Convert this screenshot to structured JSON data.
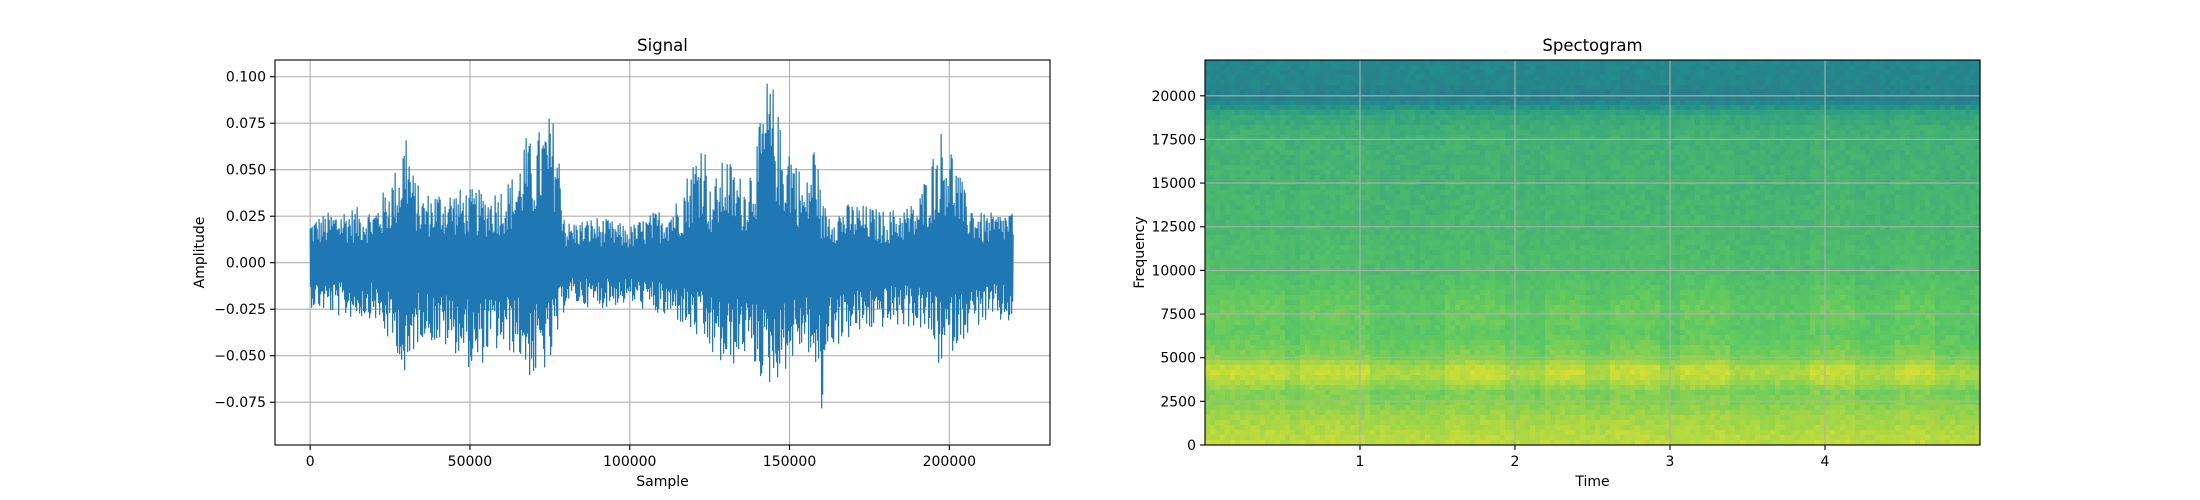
{
  "chart_data": [
    {
      "type": "line",
      "title": "Signal",
      "xlabel": "Sample",
      "ylabel": "Amplitude",
      "xlim": [
        -11000,
        231500
      ],
      "ylim": [
        -0.098,
        0.109
      ],
      "xticks": [
        0,
        50000,
        100000,
        150000,
        200000
      ],
      "xtick_labels": [
        "0",
        "50000",
        "100000",
        "150000",
        "200000"
      ],
      "yticks": [
        -0.075,
        -0.05,
        -0.025,
        0.0,
        0.025,
        0.05,
        0.075,
        0.1
      ],
      "ytick_labels": [
        "−0.075",
        "−0.050",
        "−0.025",
        "0.000",
        "0.025",
        "0.050",
        "0.075",
        "0.100"
      ],
      "grid": true,
      "line_color": "#1f77b4",
      "envelope": {
        "x": [
          0,
          10000,
          20000,
          25000,
          28000,
          30000,
          32000,
          35000,
          40000,
          47000,
          52000,
          55000,
          60000,
          65000,
          67000,
          70000,
          72000,
          75000,
          77000,
          80000,
          90000,
          100000,
          110000,
          115000,
          120000,
          123000,
          125000,
          128000,
          130000,
          133000,
          136000,
          140000,
          143000,
          145000,
          148000,
          150000,
          155000,
          158000,
          160000,
          162000,
          165000,
          170000,
          180000,
          190000,
          193000,
          195000,
          197000,
          200000,
          205000,
          210000,
          215000,
          220000
        ],
        "upper": [
          0.024,
          0.03,
          0.03,
          0.045,
          0.056,
          0.078,
          0.05,
          0.037,
          0.04,
          0.04,
          0.04,
          0.038,
          0.042,
          0.05,
          0.07,
          0.063,
          0.074,
          0.08,
          0.076,
          0.022,
          0.025,
          0.02,
          0.03,
          0.035,
          0.058,
          0.075,
          0.04,
          0.05,
          0.06,
          0.05,
          0.045,
          0.068,
          0.1,
          0.095,
          0.065,
          0.07,
          0.04,
          0.072,
          0.033,
          0.03,
          0.03,
          0.033,
          0.028,
          0.033,
          0.05,
          0.06,
          0.073,
          0.068,
          0.038,
          0.027,
          0.027,
          0.03
        ],
        "lower": [
          -0.024,
          -0.03,
          -0.03,
          -0.045,
          -0.05,
          -0.079,
          -0.05,
          -0.04,
          -0.045,
          -0.05,
          -0.063,
          -0.05,
          -0.048,
          -0.05,
          -0.058,
          -0.065,
          -0.06,
          -0.058,
          -0.045,
          -0.022,
          -0.025,
          -0.022,
          -0.03,
          -0.032,
          -0.04,
          -0.045,
          -0.05,
          -0.055,
          -0.06,
          -0.055,
          -0.05,
          -0.06,
          -0.068,
          -0.065,
          -0.06,
          -0.055,
          -0.045,
          -0.06,
          -0.088,
          -0.045,
          -0.045,
          -0.04,
          -0.035,
          -0.035,
          -0.04,
          -0.045,
          -0.058,
          -0.05,
          -0.04,
          -0.033,
          -0.033,
          -0.033
        ]
      }
    },
    {
      "type": "heatmap",
      "title": "Spectogram",
      "xlabel": "Time",
      "ylabel": "Frequency",
      "xlim": [
        0,
        5.0
      ],
      "ylim": [
        0,
        22050
      ],
      "xticks": [
        1,
        2,
        3,
        4
      ],
      "xtick_labels": [
        "1",
        "2",
        "3",
        "4"
      ],
      "yticks": [
        0,
        2500,
        5000,
        7500,
        10000,
        12500,
        15000,
        17500,
        20000
      ],
      "ytick_labels": [
        "0",
        "2500",
        "5000",
        "7500",
        "10000",
        "12500",
        "15000",
        "17500",
        "20000"
      ],
      "grid": true,
      "colormap": [
        "#440154",
        "#3b528b",
        "#21918c",
        "#5ec962",
        "#fde725"
      ],
      "vrange": [
        0,
        1
      ],
      "frequency_profile": {
        "freq": [
          0,
          1500,
          3000,
          3800,
          4300,
          5000,
          6500,
          7500,
          8500,
          10000,
          13000,
          16000,
          18000,
          19000,
          19400,
          19800,
          20200,
          20700,
          22050
        ],
        "level": [
          0.9,
          0.85,
          0.78,
          0.86,
          0.88,
          0.78,
          0.73,
          0.74,
          0.72,
          0.69,
          0.66,
          0.64,
          0.63,
          0.58,
          0.5,
          0.42,
          0.44,
          0.46,
          0.46
        ]
      },
      "active_segments": [
        [
          0.0,
          0.5
        ],
        [
          0.6,
          1.05
        ],
        [
          1.55,
          1.95
        ],
        [
          2.2,
          2.45
        ],
        [
          2.6,
          2.95
        ],
        [
          3.05,
          3.4
        ],
        [
          3.9,
          4.2
        ],
        [
          4.45,
          4.7
        ]
      ]
    }
  ]
}
